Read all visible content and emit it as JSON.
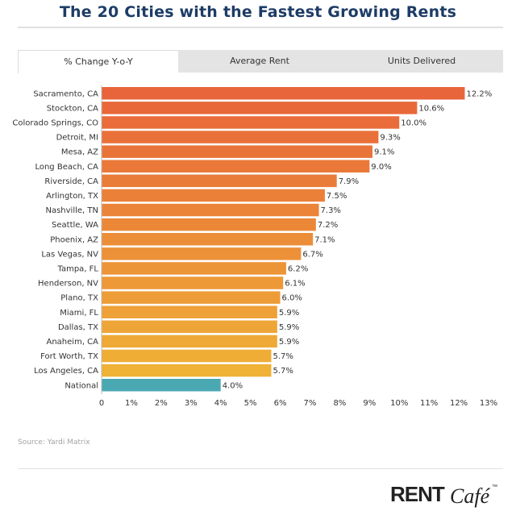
{
  "header": {
    "title": "The 20 Cities with the Fastest Growing Rents"
  },
  "tabs": [
    {
      "label": "% Change Y-o-Y",
      "active": true
    },
    {
      "label": "Average Rent",
      "active": false
    },
    {
      "label": "Units Delivered",
      "active": false
    }
  ],
  "source": "Source: Yardi Matrix",
  "logo": {
    "text_main": "RENT",
    "text_script": "Café",
    "mark": "™"
  },
  "colors": {
    "bar_top": "#e8643a",
    "bar_bottom": "#efb136",
    "bar_national": "#4aa8b3",
    "title": "#1d3c66"
  },
  "chart_data": {
    "type": "bar",
    "orientation": "horizontal",
    "categories": [
      "Sacramento, CA",
      "Stockton, CA",
      "Colorado Springs, CO",
      "Detroit, MI",
      "Mesa, AZ",
      "Long Beach, CA",
      "Riverside, CA",
      "Arlington, TX",
      "Nashville, TN",
      "Seattle, WA",
      "Phoenix, AZ",
      "Las Vegas, NV",
      "Tampa, FL",
      "Henderson, NV",
      "Plano, TX",
      "Miami, FL",
      "Dallas, TX",
      "Anaheim, CA",
      "Fort Worth, TX",
      "Los Angeles, CA",
      "National"
    ],
    "values": [
      12.2,
      10.6,
      10.0,
      9.3,
      9.1,
      9.0,
      7.9,
      7.5,
      7.3,
      7.2,
      7.1,
      6.7,
      6.2,
      6.1,
      6.0,
      5.9,
      5.9,
      5.9,
      5.7,
      5.7,
      4.0
    ],
    "value_labels": [
      "12.2%",
      "10.6%",
      "10.0%",
      "9.3%",
      "9.1%",
      "9.0%",
      "7.9%",
      "7.5%",
      "7.3%",
      "7.2%",
      "7.1%",
      "6.7%",
      "6.2%",
      "6.1%",
      "6.0%",
      "5.9%",
      "5.9%",
      "5.9%",
      "5.7%",
      "5.7%",
      "4.0%"
    ],
    "xlim": [
      0,
      13
    ],
    "x_ticks": [
      0,
      1,
      2,
      3,
      4,
      5,
      6,
      7,
      8,
      9,
      10,
      11,
      12,
      13
    ],
    "x_tick_labels": [
      "0",
      "1%",
      "2%",
      "3%",
      "4%",
      "5%",
      "6%",
      "7%",
      "8%",
      "9%",
      "10%",
      "11%",
      "12%",
      "13%"
    ],
    "grid": false,
    "legend": "none"
  }
}
